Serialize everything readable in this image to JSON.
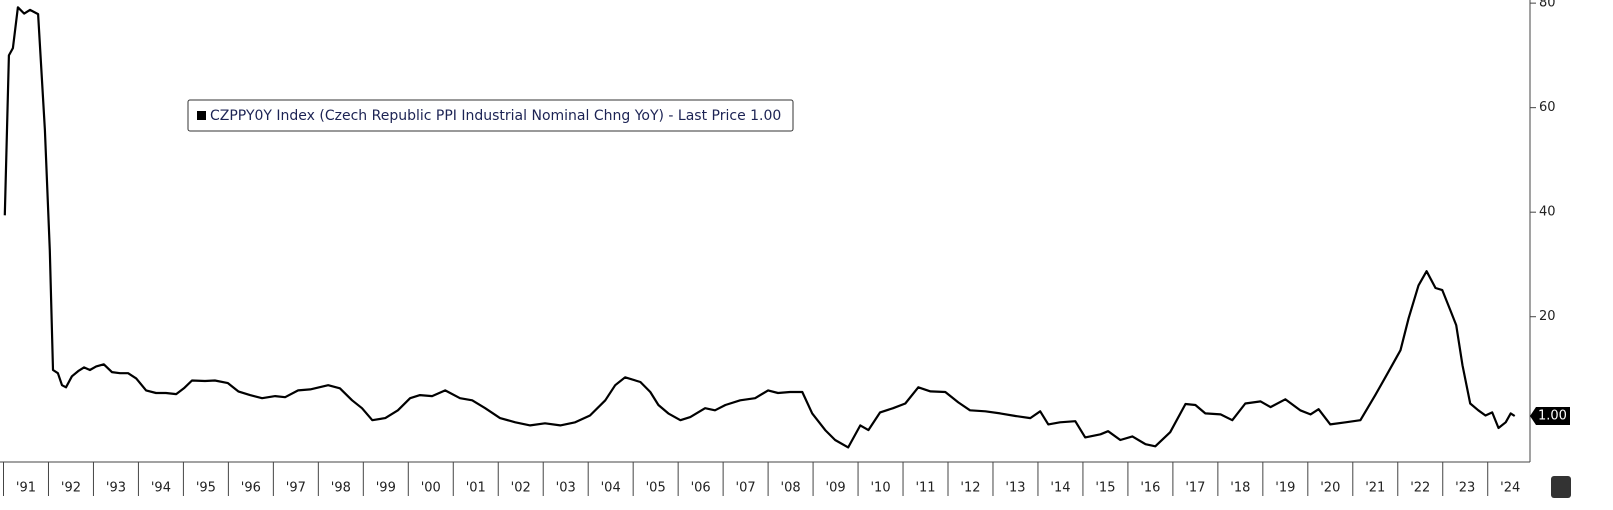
{
  "chart_data": {
    "type": "line",
    "series": [
      {
        "name": "CZPPY0Y Index (Czech Republic PPI Industrial Nominal Chng YoY) - Last Price 1.00",
        "color": "#000000",
        "x": [
          1991.03,
          1991.12,
          1991.21,
          1991.32,
          1991.46,
          1991.59,
          1991.77,
          1991.92,
          1992.03,
          1992.1,
          1992.21,
          1992.3,
          1992.39,
          1992.52,
          1992.66,
          1992.79,
          1992.92,
          1993.06,
          1993.23,
          1993.41,
          1993.59,
          1993.77,
          1993.95,
          1994.17,
          1994.39,
          1994.61,
          1994.84,
          1995.01,
          1995.19,
          1995.48,
          1995.7,
          1995.99,
          1996.22,
          1996.48,
          1996.75,
          1997.04,
          1997.26,
          1997.55,
          1997.82,
          1998.22,
          1998.48,
          1998.75,
          1998.97,
          1999.2,
          1999.49,
          1999.77,
          2000.04,
          2000.26,
          2000.53,
          2000.82,
          2001.15,
          2001.42,
          2001.71,
          2002.04,
          2002.38,
          2002.71,
          2003.04,
          2003.38,
          2003.71,
          2004.04,
          2004.38,
          2004.6,
          2004.82,
          2005.16,
          2005.38,
          2005.56,
          2005.78,
          2006.05,
          2006.27,
          2006.6,
          2006.82,
          2007.05,
          2007.38,
          2007.71,
          2008.0,
          2008.22,
          2008.49,
          2008.76,
          2008.98,
          2009.27,
          2009.49,
          2009.78,
          2010.05,
          2010.23,
          2010.49,
          2010.78,
          2011.05,
          2011.34,
          2011.61,
          2011.94,
          2012.23,
          2012.49,
          2012.83,
          2013.16,
          2013.5,
          2013.83,
          2014.05,
          2014.23,
          2014.49,
          2014.83,
          2015.05,
          2015.39,
          2015.56,
          2015.83,
          2016.1,
          2016.39,
          2016.61,
          2016.94,
          2017.28,
          2017.5,
          2017.72,
          2018.06,
          2018.32,
          2018.61,
          2018.95,
          2019.17,
          2019.5,
          2019.83,
          2020.06,
          2020.24,
          2020.5,
          2020.84,
          2021.17,
          2021.5,
          2021.79,
          2022.06,
          2022.24,
          2022.46,
          2022.64,
          2022.84,
          2022.99,
          2023.17,
          2023.3,
          2023.44,
          2023.61,
          2023.79,
          2023.95,
          2024.1,
          2024.24,
          2024.4,
          2024.51,
          2024.6
        ],
        "values": [
          39.4,
          70.0,
          71.4,
          79.2,
          78.0,
          78.7,
          77.9,
          55.7,
          32.7,
          9.8,
          9.2,
          6.9,
          6.5,
          8.6,
          9.6,
          10.3,
          9.8,
          10.5,
          10.9,
          9.4,
          9.2,
          9.2,
          8.2,
          5.9,
          5.4,
          5.4,
          5.2,
          6.3,
          7.8,
          7.7,
          7.8,
          7.3,
          5.7,
          5.0,
          4.4,
          4.8,
          4.6,
          5.9,
          6.1,
          6.9,
          6.3,
          4.0,
          2.5,
          0.2,
          0.6,
          2.1,
          4.4,
          5.0,
          4.8,
          5.9,
          4.4,
          4.0,
          2.5,
          0.6,
          -0.2,
          -0.8,
          -0.4,
          -0.8,
          -0.2,
          1.1,
          4.0,
          6.9,
          8.4,
          7.5,
          5.6,
          3.1,
          1.5,
          0.2,
          0.8,
          2.5,
          2.1,
          3.1,
          4.0,
          4.4,
          5.9,
          5.4,
          5.6,
          5.6,
          1.5,
          -1.7,
          -3.6,
          -5.0,
          -0.8,
          -1.7,
          1.7,
          2.5,
          3.4,
          6.5,
          5.7,
          5.6,
          3.6,
          2.1,
          1.9,
          1.5,
          1.0,
          0.6,
          1.9,
          -0.6,
          -0.2,
          0.0,
          -3.1,
          -2.5,
          -1.9,
          -3.6,
          -2.9,
          -4.4,
          -4.8,
          -2.1,
          3.3,
          3.1,
          1.5,
          1.3,
          0.2,
          3.4,
          3.8,
          2.7,
          4.2,
          2.1,
          1.3,
          2.3,
          -0.6,
          -0.2,
          0.2,
          5.0,
          9.4,
          13.6,
          19.7,
          26.0,
          28.7,
          25.5,
          25.1,
          21.2,
          18.4,
          10.7,
          3.4,
          2.1,
          1.1,
          1.7,
          -1.3,
          -0.2,
          1.5,
          1.0
        ]
      }
    ],
    "last_price": {
      "value": 1,
      "label": "1.00"
    },
    "xlim": [
      1991,
      2024.94
    ],
    "xticks": [
      {
        "value": 1991,
        "label": "'91"
      },
      {
        "value": 1992,
        "label": "'92"
      },
      {
        "value": 1993,
        "label": "'93"
      },
      {
        "value": 1994,
        "label": "'94"
      },
      {
        "value": 1995,
        "label": "'95"
      },
      {
        "value": 1996,
        "label": "'96"
      },
      {
        "value": 1997,
        "label": "'97"
      },
      {
        "value": 1998,
        "label": "'98"
      },
      {
        "value": 1999,
        "label": "'99"
      },
      {
        "value": 2000,
        "label": "'00"
      },
      {
        "value": 2001,
        "label": "'01"
      },
      {
        "value": 2002,
        "label": "'02"
      },
      {
        "value": 2003,
        "label": "'03"
      },
      {
        "value": 2004,
        "label": "'04"
      },
      {
        "value": 2005,
        "label": "'05"
      },
      {
        "value": 2006,
        "label": "'06"
      },
      {
        "value": 2007,
        "label": "'07"
      },
      {
        "value": 2008,
        "label": "'08"
      },
      {
        "value": 2009,
        "label": "'09"
      },
      {
        "value": 2010,
        "label": "'10"
      },
      {
        "value": 2011,
        "label": "'11"
      },
      {
        "value": 2012,
        "label": "'12"
      },
      {
        "value": 2013,
        "label": "'13"
      },
      {
        "value": 2014,
        "label": "'14"
      },
      {
        "value": 2015,
        "label": "'15"
      },
      {
        "value": 2016,
        "label": "'16"
      },
      {
        "value": 2017,
        "label": "'17"
      },
      {
        "value": 2018,
        "label": "'18"
      },
      {
        "value": 2019,
        "label": "'19"
      },
      {
        "value": 2020,
        "label": "'20"
      },
      {
        "value": 2021,
        "label": "'21"
      },
      {
        "value": 2022,
        "label": "'22"
      },
      {
        "value": 2023,
        "label": "'23"
      },
      {
        "value": 2024,
        "label": "'24"
      }
    ],
    "ylim": [
      -7.8,
      80.6
    ],
    "yticks": [
      20,
      40,
      60,
      80
    ],
    "grid": false
  }
}
